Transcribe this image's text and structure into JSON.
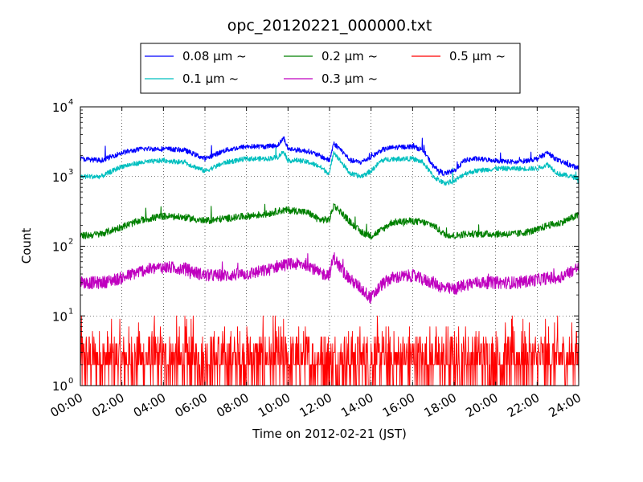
{
  "chart_data": {
    "type": "line",
    "title": "opc_20120221_000000.txt",
    "xlabel": "Time on 2012-02-21 (JST)",
    "ylabel": "Count",
    "x_ticks": [
      "00:00",
      "02:00",
      "04:00",
      "06:00",
      "08:00",
      "10:00",
      "12:00",
      "14:00",
      "16:00",
      "18:00",
      "20:00",
      "22:00",
      "24:00"
    ],
    "x_range_hours": [
      0,
      24
    ],
    "y_scale": "log",
    "ylim": [
      1,
      10000
    ],
    "y_ticks": [
      {
        "base": "10",
        "exp": "0"
      },
      {
        "base": "10",
        "exp": "1"
      },
      {
        "base": "10",
        "exp": "2"
      },
      {
        "base": "10",
        "exp": "3"
      },
      {
        "base": "10",
        "exp": "4"
      }
    ],
    "grid": true,
    "legend_position": "top-center, above plot",
    "series": [
      {
        "name": "0.08 μm ~",
        "color": "#0000ff",
        "key_hours": [
          0,
          1,
          2,
          3,
          4,
          5,
          6,
          7,
          8,
          9,
          9.5,
          9.8,
          10,
          10.5,
          11,
          11.5,
          12,
          12.2,
          12.5,
          13,
          13.5,
          14,
          14.5,
          15,
          16,
          16.5,
          17,
          17.5,
          18,
          18.5,
          19,
          20,
          21,
          22,
          22.5,
          23,
          24
        ],
        "key_values": [
          1800,
          1700,
          2200,
          2500,
          2500,
          2400,
          1800,
          2400,
          2700,
          2700,
          2800,
          3600,
          2500,
          2400,
          2300,
          2000,
          1700,
          3000,
          2500,
          1700,
          1600,
          1900,
          2400,
          2600,
          2700,
          2400,
          1400,
          1100,
          1200,
          1700,
          1800,
          1700,
          1600,
          1800,
          2200,
          1700,
          1300
        ]
      },
      {
        "name": "0.1 μm ~",
        "color": "#00bfbf",
        "key_hours": [
          0,
          1,
          2,
          3,
          4,
          5,
          6,
          7,
          8,
          9,
          9.5,
          9.8,
          10,
          10.5,
          11,
          11.5,
          12,
          12.2,
          12.5,
          13,
          13.5,
          14,
          14.5,
          15,
          16,
          16.5,
          17,
          17.5,
          18,
          18.5,
          19,
          20,
          21,
          22,
          22.5,
          23,
          24
        ],
        "key_values": [
          1000,
          1000,
          1400,
          1600,
          1700,
          1600,
          1200,
          1600,
          1800,
          1800,
          1900,
          2300,
          1700,
          1700,
          1600,
          1400,
          1100,
          2300,
          1700,
          1100,
          1000,
          1200,
          1700,
          1800,
          1800,
          1600,
          1000,
          800,
          850,
          1100,
          1200,
          1300,
          1300,
          1300,
          1500,
          1100,
          950
        ]
      },
      {
        "name": "0.2 μm ~",
        "color": "#008000",
        "key_hours": [
          0,
          1,
          2,
          3,
          4,
          5,
          6,
          7,
          8,
          9,
          9.5,
          10,
          10.5,
          11,
          11.5,
          12,
          12.2,
          12.5,
          13,
          13.5,
          14,
          14.5,
          15,
          16,
          16.5,
          17,
          17.5,
          18,
          18.5,
          19,
          20,
          21,
          22,
          22.5,
          23,
          24
        ],
        "key_values": [
          140,
          150,
          190,
          240,
          270,
          260,
          230,
          250,
          270,
          290,
          320,
          330,
          320,
          300,
          240,
          240,
          390,
          320,
          220,
          160,
          140,
          170,
          220,
          230,
          220,
          200,
          150,
          140,
          150,
          150,
          150,
          150,
          170,
          200,
          210,
          280
        ]
      },
      {
        "name": "0.3 μm ~",
        "color": "#bf00bf",
        "key_hours": [
          0,
          1,
          2,
          3,
          4,
          5,
          6,
          7,
          8,
          9,
          9.5,
          10,
          10.5,
          11,
          11.5,
          12,
          12.2,
          12.5,
          13,
          13.5,
          14,
          14.5,
          15,
          16,
          16.5,
          17,
          17.5,
          18,
          18.5,
          19,
          20,
          21,
          22,
          22.5,
          23,
          24
        ],
        "key_values": [
          30,
          30,
          35,
          45,
          50,
          48,
          38,
          38,
          40,
          45,
          52,
          55,
          55,
          55,
          40,
          40,
          70,
          50,
          33,
          25,
          18,
          28,
          35,
          38,
          33,
          30,
          25,
          24,
          28,
          30,
          30,
          30,
          33,
          35,
          35,
          50
        ]
      },
      {
        "name": "0.5 μm ~",
        "color": "#ff0000",
        "key_hours": [
          0,
          4,
          8,
          12,
          16,
          20,
          24
        ],
        "key_values": [
          2,
          2,
          2,
          2,
          2,
          2,
          2
        ]
      }
    ]
  }
}
